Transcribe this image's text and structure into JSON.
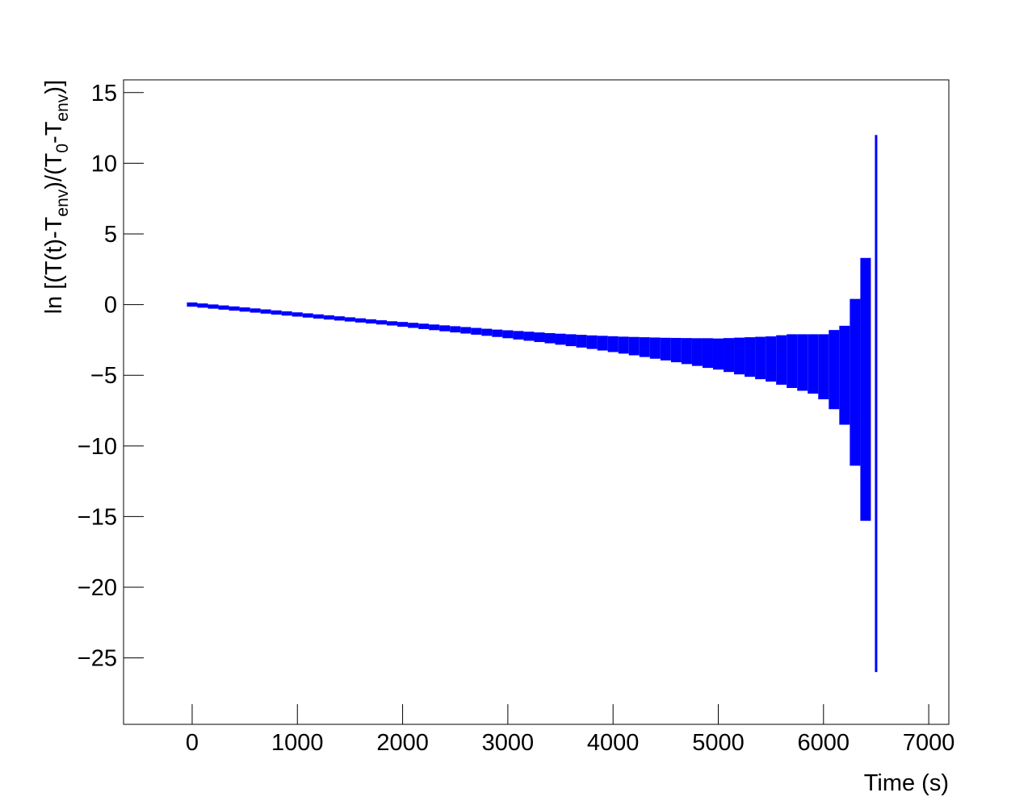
{
  "chart_data": {
    "type": "errorbar",
    "xlabel": "Time (s)",
    "ylabel_parts": [
      "ln [(T(t)-T",
      "env",
      ")/(T",
      "0",
      "-T",
      "env",
      ")]"
    ],
    "color": "#0000ff",
    "xerr": 50,
    "x": [
      0,
      100,
      200,
      300,
      400,
      500,
      600,
      700,
      800,
      900,
      1000,
      1100,
      1200,
      1300,
      1400,
      1500,
      1600,
      1700,
      1800,
      1900,
      2000,
      2100,
      2200,
      2300,
      2400,
      2500,
      2600,
      2700,
      2800,
      2900,
      3000,
      3100,
      3200,
      3300,
      3400,
      3500,
      3600,
      3700,
      3800,
      3900,
      4000,
      4100,
      4200,
      4300,
      4400,
      4500,
      4600,
      4700,
      4800,
      4900,
      5000,
      5100,
      5200,
      5300,
      5400,
      5500,
      5600,
      5700,
      5800,
      5900,
      6000,
      6100,
      6200,
      6300,
      6400,
      6500
    ],
    "values": [
      0,
      -0.07,
      -0.14,
      -0.21,
      -0.28,
      -0.35,
      -0.42,
      -0.49,
      -0.56,
      -0.63,
      -0.7,
      -0.77,
      -0.84,
      -0.91,
      -0.98,
      -1.05,
      -1.12,
      -1.19,
      -1.26,
      -1.33,
      -1.4,
      -1.47,
      -1.54,
      -1.61,
      -1.68,
      -1.75,
      -1.82,
      -1.89,
      -1.96,
      -2.03,
      -2.1,
      -2.17,
      -2.24,
      -2.31,
      -2.38,
      -2.45,
      -2.52,
      -2.59,
      -2.66,
      -2.73,
      -2.8,
      -2.87,
      -2.94,
      -3.01,
      -3.08,
      -3.15,
      -3.22,
      -3.29,
      -3.36,
      -3.43,
      -3.5,
      -3.57,
      -3.64,
      -3.71,
      -3.78,
      -3.85,
      -3.92,
      -4.0,
      -4.1,
      -4.2,
      -4.4,
      -4.6,
      -5.0,
      -5.5,
      -6.0,
      -7.0
    ],
    "yerrors": [
      0.15,
      0.15,
      0.15,
      0.15,
      0.15,
      0.15,
      0.15,
      0.15,
      0.15,
      0.15,
      0.15,
      0.15,
      0.15,
      0.15,
      0.15,
      0.15,
      0.15,
      0.15,
      0.15,
      0.15,
      0.17,
      0.18,
      0.19,
      0.2,
      0.21,
      0.22,
      0.23,
      0.24,
      0.25,
      0.26,
      0.28,
      0.3,
      0.32,
      0.34,
      0.36,
      0.39,
      0.42,
      0.45,
      0.48,
      0.52,
      0.56,
      0.6,
      0.65,
      0.7,
      0.75,
      0.8,
      0.86,
      0.92,
      0.98,
      1.05,
      1.1,
      1.2,
      1.3,
      1.4,
      1.5,
      1.6,
      1.75,
      1.9,
      2.0,
      2.1,
      2.3,
      2.8,
      3.5,
      5.9,
      9.3,
      19.0
    ],
    "xlim": [
      -652,
      7191
    ],
    "ylim": [
      -29.7,
      15.9
    ],
    "xticks": [
      0,
      1000,
      2000,
      3000,
      4000,
      5000,
      6000,
      7000
    ],
    "yticks": [
      {
        "value": -25,
        "label": "−25"
      },
      {
        "value": -20,
        "label": "−20"
      },
      {
        "value": -15,
        "label": "−15"
      },
      {
        "value": -10,
        "label": "−10"
      },
      {
        "value": -5,
        "label": "−5"
      },
      0,
      5,
      10,
      15
    ]
  }
}
